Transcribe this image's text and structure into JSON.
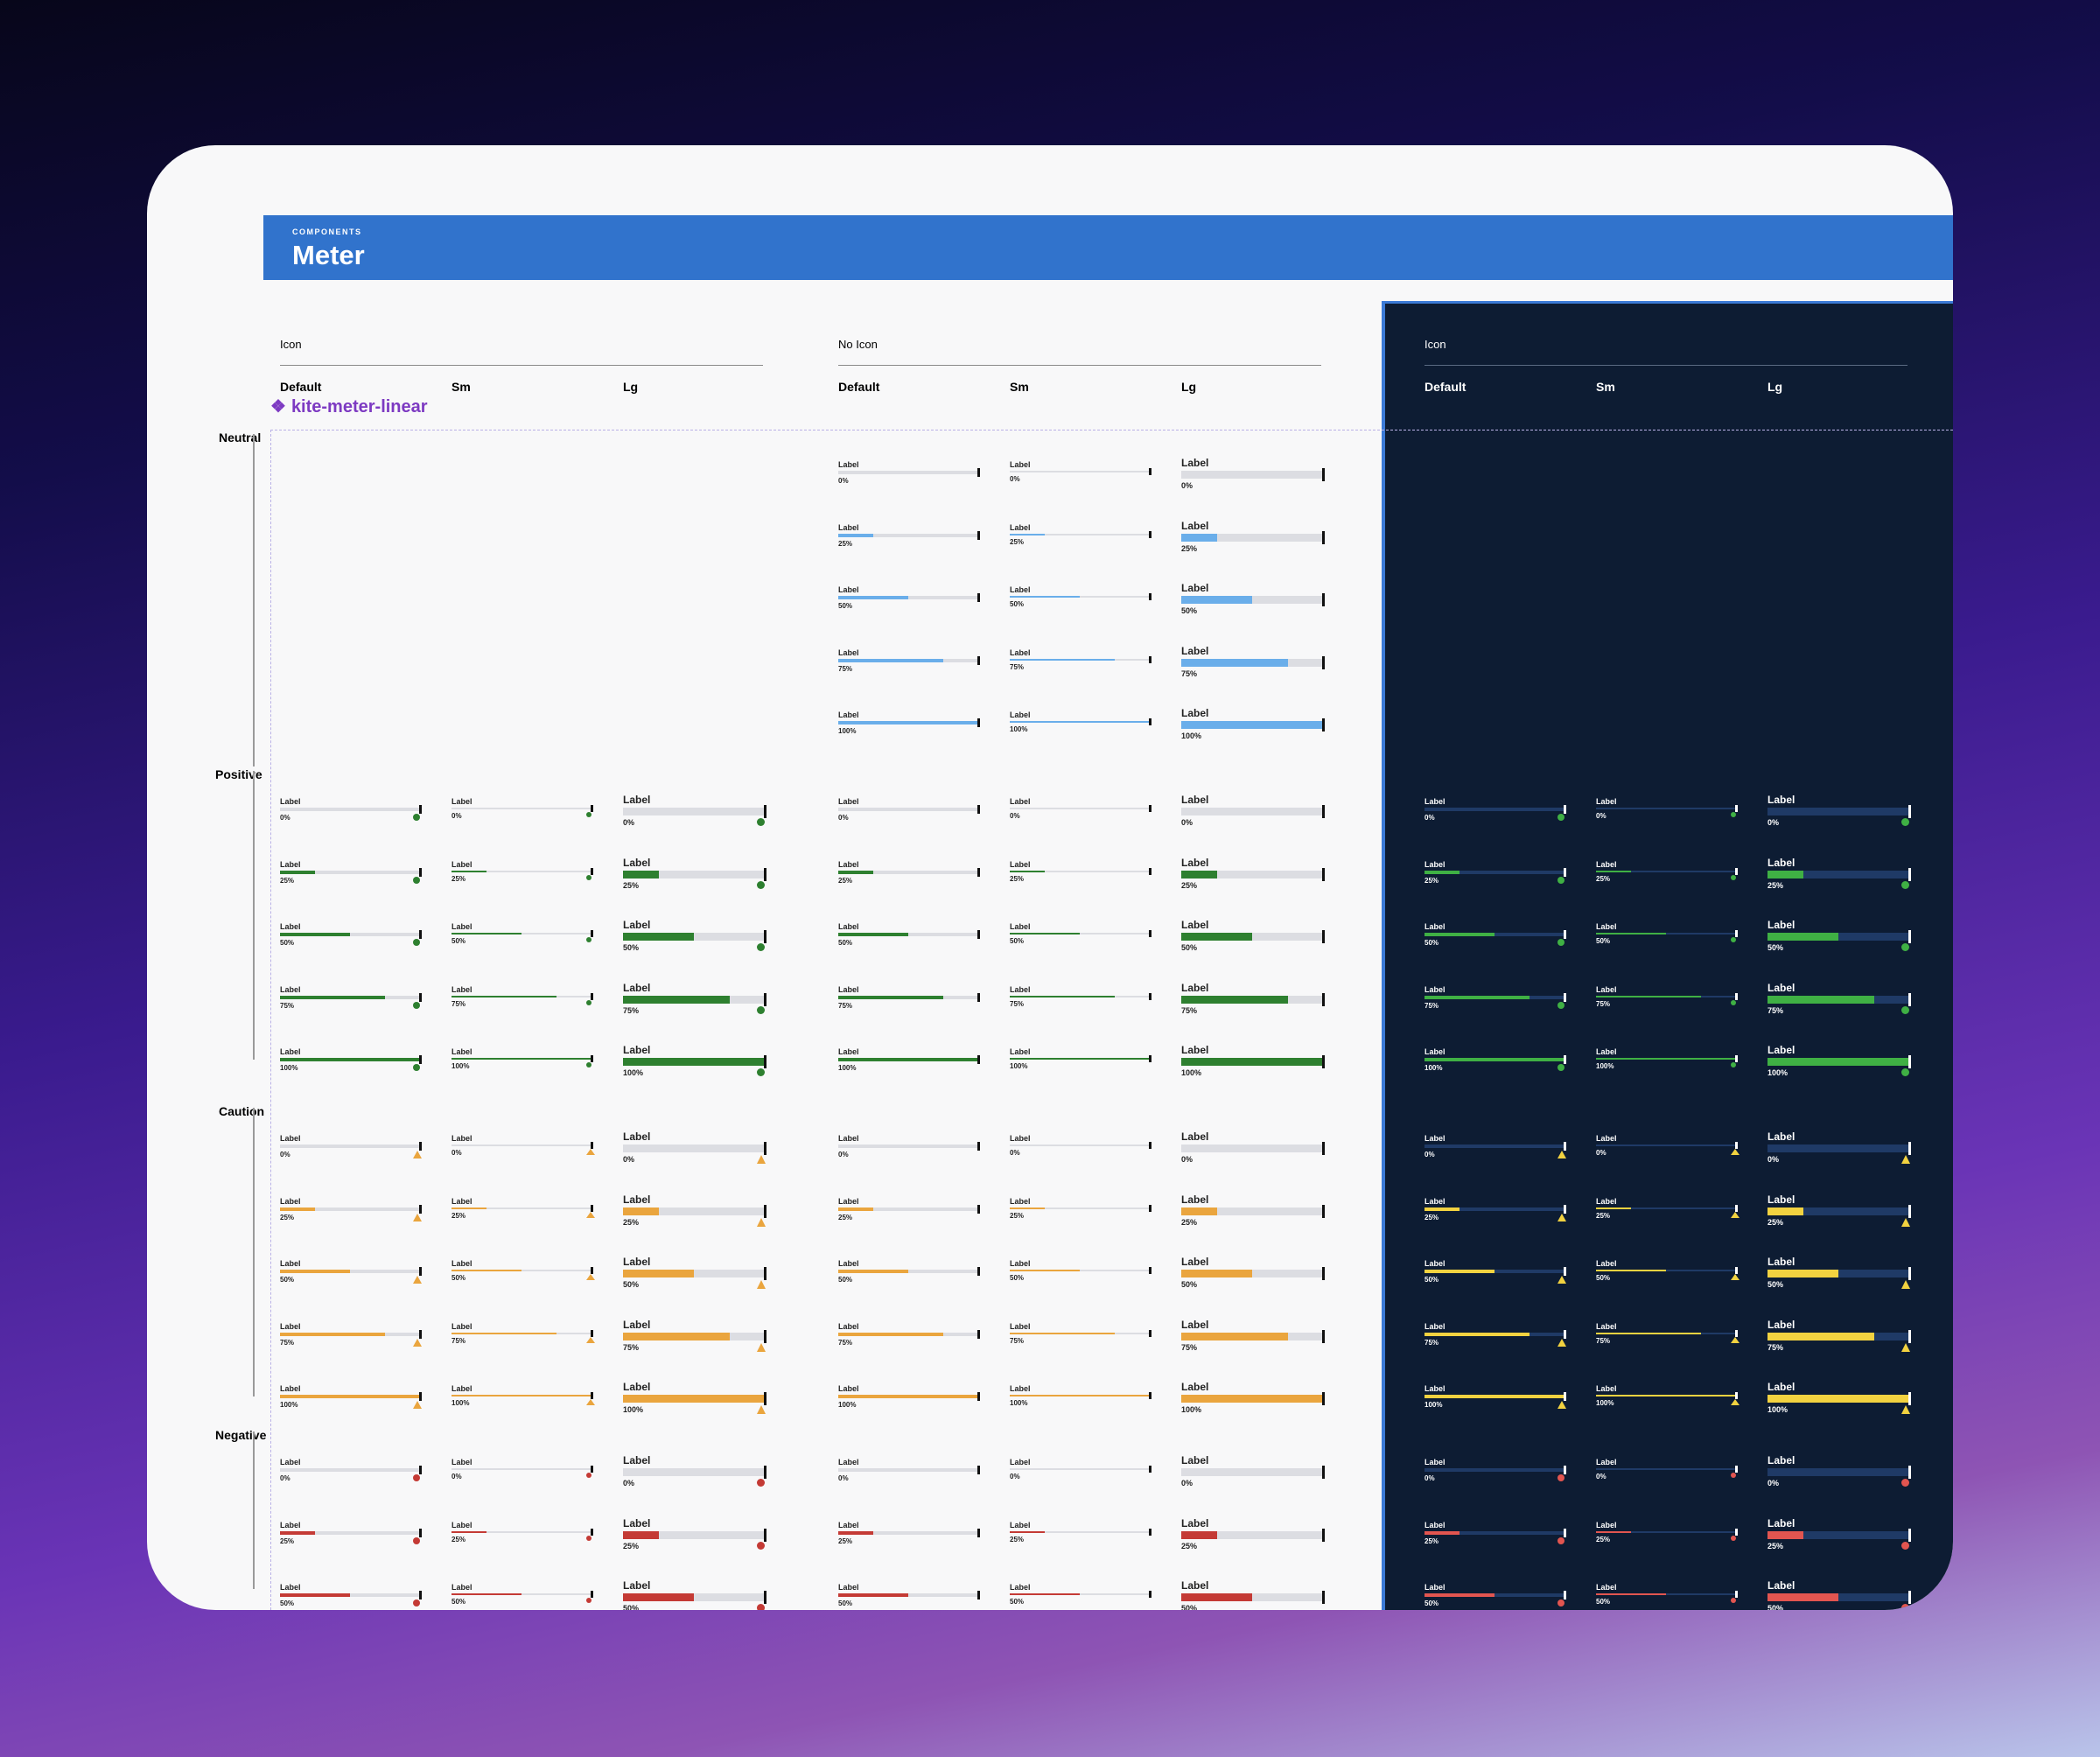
{
  "header": {
    "eyebrow": "COMPONENTS",
    "title": "Meter"
  },
  "component_tag": "kite-meter-linear",
  "groups": [
    {
      "label": "Icon",
      "theme": "light"
    },
    {
      "label": "No Icon",
      "theme": "light"
    },
    {
      "label": "Icon",
      "theme": "dark"
    }
  ],
  "columns": {
    "default": "Default",
    "sm": "Sm",
    "lg": "Lg"
  },
  "rows": [
    {
      "label": "Neutral",
      "status": "neutral"
    },
    {
      "label": "Positive",
      "status": "positive"
    },
    {
      "label": "Caution",
      "status": "caution"
    },
    {
      "label": "Negative",
      "status": "negative"
    }
  ],
  "meter": {
    "label": "Label",
    "levels": [
      {
        "value": 0,
        "text": "0%"
      },
      {
        "value": 0.25,
        "text": "25%"
      },
      {
        "value": 0.5,
        "text": "50%"
      },
      {
        "value": 0.75,
        "text": "75%"
      },
      {
        "value": 1,
        "text": "100%"
      }
    ]
  },
  "colors": {
    "light": {
      "track": "#dcdde2",
      "neutral": "#6aaeea",
      "positive": "#2e8030",
      "caution": "#eaa53e",
      "negative": "#c43a35"
    },
    "dark": {
      "track": "#1f3a66",
      "positive": "#3fb044",
      "caution": "#f2d240",
      "negative": "#e25550"
    }
  },
  "icons": {
    "positive": "check-dot-icon",
    "caution": "warning-triangle-icon",
    "negative": "error-dot-icon"
  }
}
